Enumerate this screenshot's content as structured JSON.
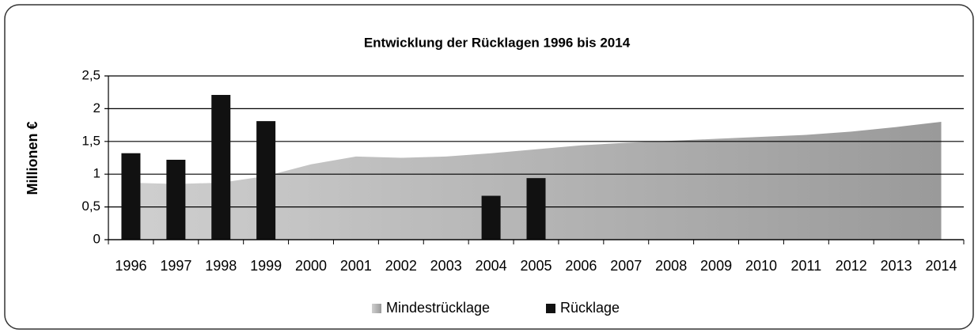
{
  "chart_data": {
    "type": "bar",
    "title": "Entwicklung der Rücklagen 1996 bis 2014",
    "ylabel": "Millionen €",
    "categories": [
      "1996",
      "1997",
      "1998",
      "1999",
      "2000",
      "2001",
      "2002",
      "2003",
      "2004",
      "2005",
      "2006",
      "2007",
      "2008",
      "2009",
      "2010",
      "2011",
      "2012",
      "2013",
      "2014"
    ],
    "series": [
      {
        "name": "Mindestrücklage",
        "type": "area",
        "color": "#a8a8a8",
        "values": [
          0.87,
          0.85,
          0.87,
          0.97,
          1.15,
          1.27,
          1.25,
          1.27,
          1.32,
          1.38,
          1.44,
          1.48,
          1.51,
          1.54,
          1.57,
          1.6,
          1.65,
          1.72,
          1.8
        ]
      },
      {
        "name": "Rücklage",
        "type": "bar",
        "color": "#111111",
        "values": [
          1.32,
          1.22,
          2.21,
          1.81,
          null,
          null,
          null,
          null,
          0.67,
          0.94,
          null,
          null,
          null,
          null,
          null,
          null,
          null,
          null,
          null
        ]
      }
    ],
    "ylim": [
      0,
      2.5
    ],
    "yticks": [
      0,
      {
        "value": 0.5,
        "label": "0,5"
      },
      1,
      {
        "value": 1.5,
        "label": "1,5"
      },
      2,
      {
        "value": 2.5,
        "label": "2,5"
      }
    ],
    "grid": true,
    "legend": "bottom"
  }
}
